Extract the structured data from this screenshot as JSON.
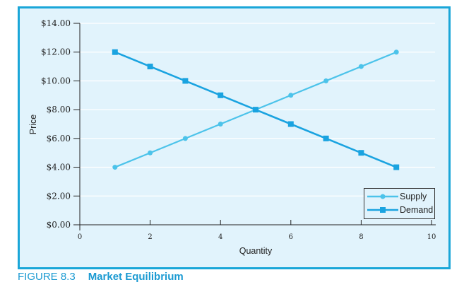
{
  "figure": {
    "number": "FIGURE 8.3",
    "title": "Market Equilibrium"
  },
  "legend": {
    "items": [
      {
        "label": "Supply",
        "marker": "circle",
        "color": "#4cc3ea"
      },
      {
        "label": "Demand",
        "marker": "square",
        "color": "#1aa3e0"
      }
    ]
  },
  "axes": {
    "xlabel": "Quantity",
    "ylabel": "Price",
    "xticks": [
      "0",
      "2",
      "4",
      "6",
      "8",
      "10"
    ],
    "yticks": [
      "$0.00",
      "$2.00",
      "$4.00",
      "$6.00",
      "$8.00",
      "$10.00",
      "$12.00",
      "$14.00"
    ]
  },
  "colors": {
    "frame_border": "#1aa6d8",
    "plot_background": "#e1f3fc",
    "caption": "#1b9ad2"
  },
  "chart_data": {
    "type": "line",
    "title": "Market Equilibrium",
    "xlabel": "Quantity",
    "ylabel": "Price",
    "x": [
      1,
      2,
      3,
      4,
      5,
      6,
      7,
      8,
      9
    ],
    "series": [
      {
        "name": "Supply",
        "marker": "circle",
        "color": "#4cc3ea",
        "values": [
          4,
          5,
          6,
          7,
          8,
          9,
          10,
          11,
          12
        ]
      },
      {
        "name": "Demand",
        "marker": "square",
        "color": "#1aa3e0",
        "values": [
          12,
          11,
          10,
          9,
          8,
          7,
          6,
          5,
          4
        ]
      }
    ],
    "xlim": [
      0,
      10
    ],
    "ylim": [
      0,
      14
    ],
    "xticks": [
      0,
      2,
      4,
      6,
      8,
      10
    ],
    "yticks": [
      0,
      2,
      4,
      6,
      8,
      10,
      12,
      14
    ],
    "ytick_format": "$0.00",
    "grid": "horizontal",
    "legend_position": "lower right"
  }
}
